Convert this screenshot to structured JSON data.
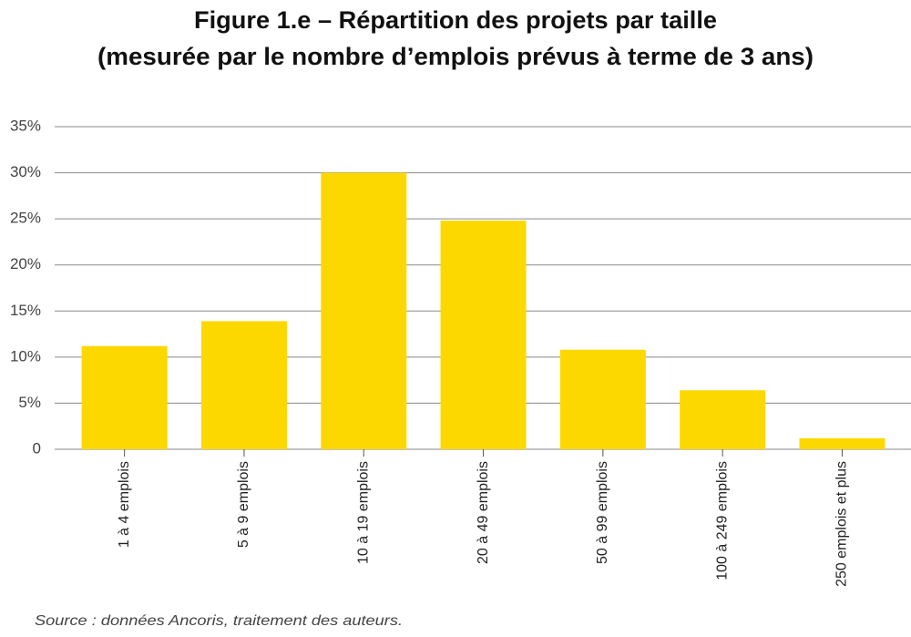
{
  "chart_data": {
    "type": "bar",
    "title": [
      "Figure 1.e – Répartition des projets par taille",
      "(mesurée par le nombre d’emplois prévus à terme de 3 ans)"
    ],
    "categories": [
      "1 à 4 emplois",
      "5 à 9 emplois",
      "10 à 19 emplois",
      "20 à 49 emplois",
      "50 à 99 emplois",
      "100 à 249 emplois",
      "250 emplois et plus"
    ],
    "values": [
      11.2,
      13.9,
      30,
      24.8,
      10.8,
      6.4,
      1.2
    ],
    "color": "#fdd800",
    "ylim": [
      0,
      35
    ],
    "yticks": [
      0,
      {
        "value": 5,
        "label": "5%"
      },
      {
        "value": 10,
        "label": "10%"
      },
      {
        "value": 15,
        "label": "15%"
      },
      {
        "value": 20,
        "label": "20%"
      },
      {
        "value": 25,
        "label": "25%"
      },
      {
        "value": 30,
        "label": "30%"
      },
      {
        "value": 35,
        "label": "35%"
      }
    ],
    "grid": true,
    "note": "Source : données Ancoris, traitement des auteurs."
  }
}
